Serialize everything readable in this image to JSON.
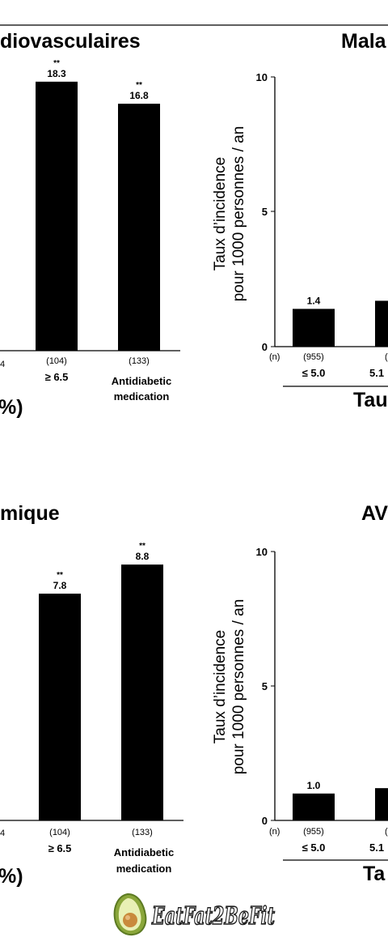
{
  "chart_data": [
    {
      "type": "bar",
      "title": "diovasculaires",
      "ylabel": "",
      "ylim": [
        0,
        20
      ],
      "categories": [
        "",
        "≥ 6.5",
        "Antidiabetic medication"
      ],
      "n_labels": [
        "4",
        "(104)",
        "(133)"
      ],
      "values": [
        null,
        18.3,
        16.8
      ],
      "value_labels": [
        "",
        "18.3",
        "16.8"
      ],
      "significance": [
        "",
        "**",
        "**"
      ],
      "x_axis_fragment": "%)"
    },
    {
      "type": "bar",
      "title": "Mala",
      "ylabel": "Taux d’incidence pour 1000 personnes / an",
      "ylabel_lines": [
        "Taux d’incidence",
        "pour 1000 personnes / an"
      ],
      "ylim": [
        0,
        10
      ],
      "yticks": [
        "0",
        "5",
        "10"
      ],
      "n_prefix": "(n)",
      "categories": [
        "≤ 5.0",
        "5.1"
      ],
      "n_labels": [
        "(955)",
        "("
      ],
      "values": [
        1.4,
        1.7
      ],
      "value_labels": [
        "1.4",
        ""
      ],
      "x_axis_fragment": "Tau"
    },
    {
      "type": "bar",
      "title": "mique",
      "ylabel": "",
      "ylim": [
        0,
        10
      ],
      "categories": [
        "",
        "≥ 6.5",
        "Antidiabetic medication"
      ],
      "n_labels": [
        "4",
        "(104)",
        "(133)"
      ],
      "values": [
        null,
        7.8,
        8.8
      ],
      "value_labels": [
        "",
        "7.8",
        "8.8"
      ],
      "significance": [
        "",
        "**",
        "**"
      ],
      "x_axis_fragment": "%)"
    },
    {
      "type": "bar",
      "title": "AV",
      "ylabel": "Taux d’incidence pour 1000 personnes / an",
      "ylabel_lines": [
        "Taux d’incidence",
        "pour 1000 personnes / an"
      ],
      "ylim": [
        0,
        10
      ],
      "yticks": [
        "0",
        "5",
        "10"
      ],
      "n_prefix": "(n)",
      "categories": [
        "≤ 5.0",
        "5.1"
      ],
      "n_labels": [
        "(955)",
        "("
      ],
      "values": [
        1.0,
        1.2
      ],
      "value_labels": [
        "1.0",
        ""
      ],
      "x_axis_fragment": "Ta"
    }
  ],
  "logo": {
    "text": "EatFat2BeFit",
    "colors": {
      "avocado": "#8aa63a",
      "pit": "#c98a3c",
      "text": "#1f1f1f"
    }
  }
}
